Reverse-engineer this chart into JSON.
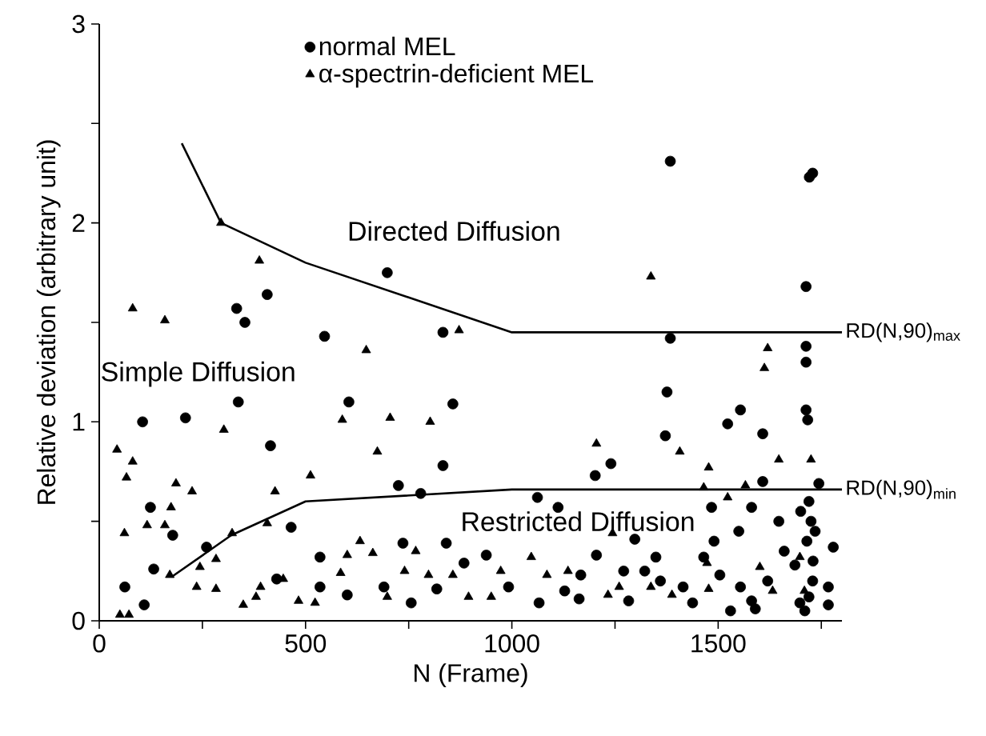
{
  "chart_data": {
    "type": "scatter",
    "xlabel": "N (Frame)",
    "ylabel": "Relative deviation (arbitrary unit)",
    "xlim": [
      0,
      1800
    ],
    "ylim": [
      0,
      3
    ],
    "xticks": [
      0,
      {
        "value": 250,
        "label": null
      },
      500,
      {
        "value": 750,
        "label": null
      },
      1000,
      {
        "value": 1250,
        "label": null
      },
      1500,
      {
        "value": 1750,
        "label": null
      }
    ],
    "yticks": [
      0,
      {
        "value": 0.5,
        "label": null
      },
      1,
      {
        "value": 1.5,
        "label": null
      },
      2,
      {
        "value": 2.5,
        "label": null
      },
      3
    ],
    "legend": "top",
    "annotations": [
      "Directed Diffusion",
      "Simple Diffusion",
      "Restricted Diffusion"
    ],
    "series": [
      {
        "name": "normal MEL",
        "marker": "circle",
        "color": "#000000",
        "x": [
          698,
          407,
          333,
          353,
          546,
          833,
          1384,
          1721,
          1729,
          1713,
          1384,
          1713,
          337,
          605,
          857,
          105,
          209,
          415,
          833,
          725,
          779,
          1062,
          1112,
          124,
          178,
          465,
          260,
          132,
          62,
          109,
          736,
          535,
          841,
          938,
          884,
          430,
          535,
          690,
          818,
          992,
          601,
          756,
          1066,
          1128,
          1713,
          1376,
          1554,
          1523,
          1713,
          1717,
          1608,
          1372,
          1240,
          1202,
          1608,
          1744,
          1484,
          1581,
          1550,
          1647,
          1298,
          1779,
          1205,
          1349,
          1465,
          1167,
          1271,
          1322,
          1360,
          1415,
          1504,
          1554,
          1620,
          1686,
          1729,
          1767,
          1163,
          1283,
          1438,
          1581,
          1698,
          1767,
          1720,
          1725,
          1715,
          1730,
          1720,
          1710,
          1735,
          1700,
          1530,
          1590,
          1660,
          1490
        ],
        "values": [
          1.75,
          1.64,
          1.57,
          1.5,
          1.43,
          1.45,
          2.31,
          2.23,
          2.25,
          1.68,
          1.42,
          1.38,
          1.1,
          1.1,
          1.09,
          1.0,
          1.02,
          0.88,
          0.78,
          0.68,
          0.64,
          0.62,
          0.57,
          0.57,
          0.43,
          0.47,
          0.37,
          0.26,
          0.17,
          0.08,
          0.39,
          0.32,
          0.39,
          0.33,
          0.29,
          0.21,
          0.17,
          0.17,
          0.16,
          0.17,
          0.13,
          0.09,
          0.09,
          0.15,
          1.3,
          1.15,
          1.06,
          0.99,
          1.06,
          1.01,
          0.94,
          0.93,
          0.79,
          0.73,
          0.7,
          0.69,
          0.57,
          0.57,
          0.45,
          0.5,
          0.41,
          0.37,
          0.33,
          0.32,
          0.32,
          0.23,
          0.25,
          0.25,
          0.2,
          0.17,
          0.23,
          0.17,
          0.2,
          0.28,
          0.2,
          0.17,
          0.11,
          0.1,
          0.09,
          0.1,
          0.09,
          0.08,
          0.6,
          0.5,
          0.4,
          0.3,
          0.12,
          0.05,
          0.45,
          0.55,
          0.05,
          0.06,
          0.35,
          0.4
        ]
      },
      {
        "name": "α-spectrin-deficient MEL",
        "marker": "triangle",
        "color": "#000000",
        "x": [
          295,
          388,
          81,
          159,
          872,
          647,
          1337,
          1620,
          43,
          81,
          66,
          186,
          225,
          302,
          589,
          705,
          802,
          674,
          512,
          426,
          174,
          116,
          61,
          159,
          322,
          407,
          171,
          236,
          244,
          283,
          283,
          349,
          391,
          446,
          483,
          523,
          601,
          632,
          663,
          585,
          698,
          767,
          798,
          740,
          857,
          895,
          950,
          973,
          1047,
          1085,
          1136,
          380,
          50,
          72,
          1612,
          1205,
          1407,
          1477,
          1647,
          1725,
          1566,
          1523,
          1465,
          1244,
          1473,
          1601,
          1698,
          1260,
          1337,
          1477,
          1632,
          1709,
          1388,
          1233
        ],
        "values": [
          2.0,
          1.81,
          1.57,
          1.51,
          1.46,
          1.36,
          1.73,
          1.37,
          0.86,
          0.8,
          0.72,
          0.69,
          0.65,
          0.96,
          1.01,
          1.02,
          1.0,
          0.85,
          0.73,
          0.65,
          0.57,
          0.48,
          0.44,
          0.48,
          0.44,
          0.49,
          0.23,
          0.17,
          0.27,
          0.31,
          0.16,
          0.08,
          0.17,
          0.21,
          0.1,
          0.09,
          0.33,
          0.4,
          0.34,
          0.24,
          0.12,
          0.35,
          0.23,
          0.25,
          0.23,
          0.12,
          0.12,
          0.25,
          0.32,
          0.23,
          0.25,
          0.12,
          0.03,
          0.03,
          1.27,
          0.89,
          0.85,
          0.77,
          0.81,
          0.81,
          0.68,
          0.62,
          0.67,
          0.44,
          0.29,
          0.27,
          0.32,
          0.17,
          0.17,
          0.16,
          0.15,
          0.15,
          0.13,
          0.13
        ]
      },
      {
        "name": "RD(N,90)$_{max}$",
        "type": "line",
        "marker": "none",
        "line_style": "solid",
        "color": "#000000",
        "x": [
          200,
          295,
          500,
          1000,
          1800
        ],
        "values": [
          2.4,
          2.0,
          1.8,
          1.45,
          1.45
        ]
      },
      {
        "name": "RD(N,90)$_{min}$",
        "type": "line",
        "marker": "none",
        "line_style": "solid",
        "color": "#000000",
        "x": [
          175,
          320,
          500,
          1000,
          1800
        ],
        "values": [
          0.22,
          0.43,
          0.6,
          0.66,
          0.66
        ]
      }
    ]
  }
}
